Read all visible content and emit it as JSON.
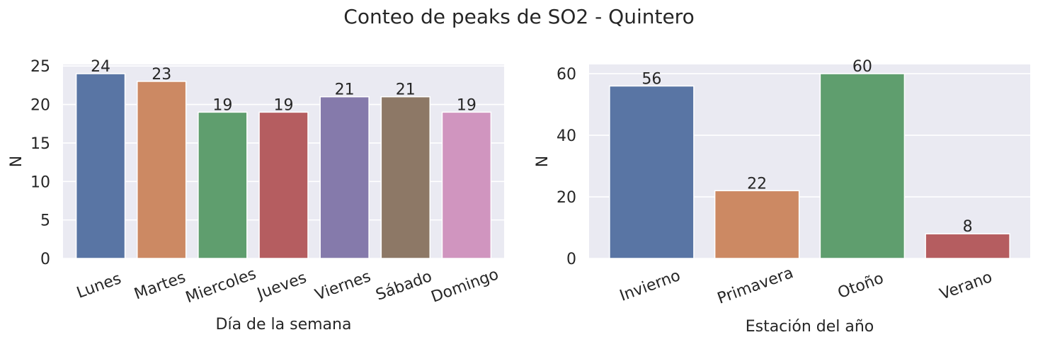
{
  "title": "Conteo de peaks de SO2 - Quintero",
  "colors": {
    "axes_bg": "#eaeaf2",
    "grid": "#ffffff",
    "text": "#262626",
    "palette": [
      "#5975a4",
      "#cc8963",
      "#5f9e6e",
      "#b55d60",
      "#857aab",
      "#8d7866",
      "#d095bf"
    ]
  },
  "chart_data": [
    {
      "type": "bar",
      "title": "",
      "categories": [
        "Lunes",
        "Martes",
        "Miercoles",
        "Jueves",
        "Viernes",
        "Sábado",
        "Domingo"
      ],
      "values": [
        24,
        23,
        19,
        19,
        21,
        21,
        19
      ],
      "data_labels": [
        "24",
        "23",
        "19",
        "19",
        "21",
        "21",
        "19"
      ],
      "xlabel": "Día de la semana",
      "ylabel": "N",
      "ylim": [
        0,
        25.2
      ],
      "yticks": [
        0,
        5,
        10,
        15,
        20,
        25
      ],
      "ytick_labels": [
        "0",
        "5",
        "10",
        "15",
        "20",
        "25"
      ],
      "grid": true,
      "xtick_rotation": -20
    },
    {
      "type": "bar",
      "title": "",
      "categories": [
        "Invierno",
        "Primavera",
        "Otoño",
        "Verano"
      ],
      "values": [
        56,
        22,
        60,
        8
      ],
      "data_labels": [
        "56",
        "22",
        "60",
        "8"
      ],
      "xlabel": "Estación del año",
      "ylabel": "N",
      "ylim": [
        0,
        63
      ],
      "yticks": [
        0,
        20,
        40,
        60
      ],
      "ytick_labels": [
        "0",
        "20",
        "40",
        "60"
      ],
      "grid": true,
      "xtick_rotation": -20
    }
  ]
}
